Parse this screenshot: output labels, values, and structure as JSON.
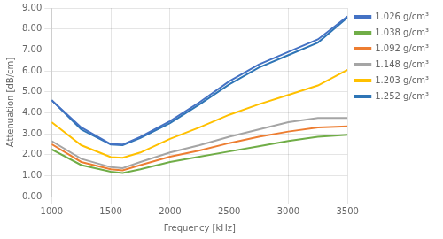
{
  "chart_data": {
    "type": "line",
    "xlabel": "Frequency [kHz]",
    "ylabel": "Attenuation [dB/cm]",
    "x": [
      1000,
      1250,
      1500,
      1600,
      1750,
      2000,
      2250,
      2500,
      2750,
      3000,
      3250,
      3500
    ],
    "series": [
      {
        "name": "1.026 g/cm³",
        "color": "#4472C4",
        "values": [
          4.6,
          3.3,
          2.5,
          2.48,
          2.85,
          3.6,
          4.5,
          5.5,
          6.3,
          6.9,
          7.5,
          8.6
        ]
      },
      {
        "name": "1.038 g/cm³",
        "color": "#70AD47",
        "values": [
          2.25,
          1.5,
          1.18,
          1.12,
          1.3,
          1.65,
          1.9,
          2.15,
          2.4,
          2.65,
          2.85,
          2.95
        ]
      },
      {
        "name": "1.092 g/cm³",
        "color": "#ED7D31",
        "values": [
          2.5,
          1.65,
          1.3,
          1.25,
          1.5,
          1.9,
          2.2,
          2.55,
          2.85,
          3.1,
          3.3,
          3.35
        ]
      },
      {
        "name": "1.148 g/cm³",
        "color": "#A5A5A5",
        "values": [
          2.65,
          1.8,
          1.4,
          1.35,
          1.65,
          2.1,
          2.45,
          2.85,
          3.2,
          3.55,
          3.75,
          3.75
        ]
      },
      {
        "name": "1.203 g/cm³",
        "color": "#FFC000",
        "values": [
          3.55,
          2.45,
          1.88,
          1.85,
          2.1,
          2.75,
          3.3,
          3.9,
          4.4,
          4.85,
          5.3,
          6.05
        ]
      },
      {
        "name": "1.252 g/cm³",
        "color": "#2E75B6",
        "values": [
          4.6,
          3.2,
          2.48,
          2.45,
          2.8,
          3.5,
          4.4,
          5.35,
          6.15,
          6.75,
          7.35,
          8.55
        ]
      }
    ],
    "xlim": [
      1000,
      3500
    ],
    "ylim": [
      0.0,
      9.0
    ],
    "xticks": [
      1000,
      1500,
      2000,
      2500,
      3000,
      3500
    ],
    "yticks": [
      {
        "value": 0.0,
        "label": "0.00"
      },
      {
        "value": 1.0,
        "label": "1.00"
      },
      {
        "value": 2.0,
        "label": "2.00"
      },
      {
        "value": 3.0,
        "label": "3.00"
      },
      {
        "value": 4.0,
        "label": "4.00"
      },
      {
        "value": 5.0,
        "label": "5.00"
      },
      {
        "value": 6.0,
        "label": "6.00"
      },
      {
        "value": 7.0,
        "label": "7.00"
      },
      {
        "value": 8.0,
        "label": "8.00"
      },
      {
        "value": 9.0,
        "label": "9.00"
      }
    ],
    "grid": true,
    "legend": "right"
  }
}
